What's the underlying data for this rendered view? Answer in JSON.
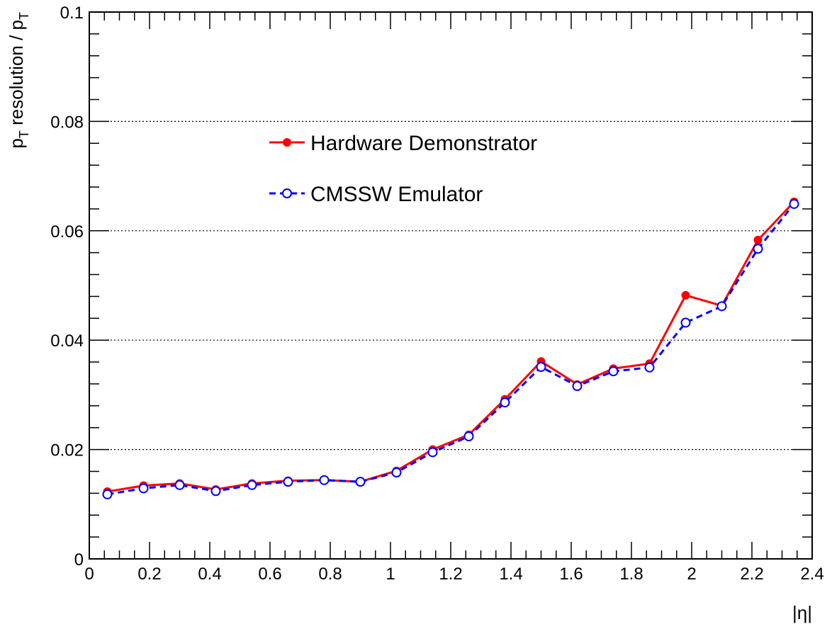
{
  "chart_data": {
    "type": "line",
    "title": "",
    "xlabel": "|η|",
    "ylabel": "p_T resolution / p_T",
    "ylabel_parts": {
      "p": "p",
      "sub_T": "T",
      "mid": " resolution / ",
      "p2": "p",
      "sub_T2": "T"
    },
    "xlim": [
      0,
      2.4
    ],
    "ylim": [
      0,
      0.1
    ],
    "x_ticks": [
      0,
      0.2,
      0.4,
      0.6,
      0.8,
      1,
      1.2,
      1.4,
      1.6,
      1.8,
      2,
      2.2,
      2.4
    ],
    "x_tick_labels": [
      "0",
      "0.2",
      "0.4",
      "0.6",
      "0.8",
      "1",
      "1.2",
      "1.4",
      "1.6",
      "1.8",
      "2",
      "2.2",
      "2.4"
    ],
    "y_ticks": [
      0,
      0.02,
      0.04,
      0.06,
      0.08,
      0.1
    ],
    "y_tick_labels": [
      "0",
      "0.02",
      "0.04",
      "0.06",
      "0.08",
      "0.1"
    ],
    "grid": "horizontal dotted at major y ticks",
    "legend_position": "upper-middle",
    "x": [
      0.06,
      0.18,
      0.3,
      0.42,
      0.54,
      0.66,
      0.78,
      0.9,
      1.02,
      1.14,
      1.26,
      1.38,
      1.5,
      1.62,
      1.74,
      1.86,
      1.98,
      2.1,
      2.22,
      2.34
    ],
    "series": [
      {
        "name": "Hardware Demonstrator",
        "color": "#ff0000",
        "marker": "filled-circle",
        "line": "solid",
        "values": [
          0.0123,
          0.0134,
          0.0138,
          0.0127,
          0.0138,
          0.0143,
          0.0144,
          0.0141,
          0.0161,
          0.02,
          0.0227,
          0.0292,
          0.0361,
          0.0319,
          0.0348,
          0.0357,
          0.0482,
          0.0463,
          0.0583,
          0.0653
        ]
      },
      {
        "name": "CMSSW Emulator",
        "color": "#0000ff",
        "marker": "open-circle",
        "line": "dashed",
        "values": [
          0.0118,
          0.0129,
          0.0135,
          0.0124,
          0.0135,
          0.0141,
          0.0144,
          0.0141,
          0.0158,
          0.0195,
          0.0224,
          0.0286,
          0.0351,
          0.0316,
          0.0343,
          0.035,
          0.0432,
          0.0462,
          0.0567,
          0.0649
        ]
      }
    ]
  }
}
